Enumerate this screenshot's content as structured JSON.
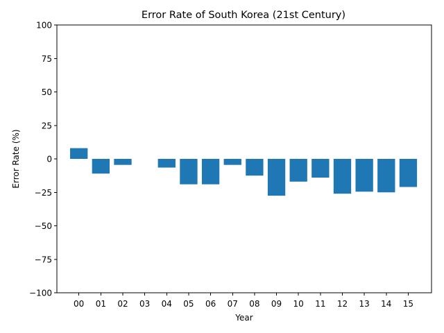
{
  "chart_data": {
    "type": "bar",
    "title": "Error Rate of South Korea (21st Century)",
    "xlabel": "Year",
    "ylabel": "Error Rate (%)",
    "categories": [
      "00",
      "01",
      "02",
      "03",
      "04",
      "05",
      "06",
      "07",
      "08",
      "09",
      "10",
      "11",
      "12",
      "13",
      "14",
      "15"
    ],
    "values": [
      8.0,
      -11.0,
      -4.5,
      0.0,
      -6.5,
      -19.0,
      -19.0,
      -4.5,
      -12.5,
      -27.5,
      -17.0,
      -14.0,
      -26.0,
      -24.5,
      -25.0,
      -21.0
    ],
    "ylim": [
      -100,
      100
    ],
    "yticks": [
      -100,
      -75,
      -50,
      -25,
      0,
      25,
      50,
      75,
      100
    ],
    "ytick_labels": [
      "−100",
      "−75",
      "−50",
      "−25",
      "0",
      "25",
      "50",
      "75",
      "100"
    ],
    "bar_color": "#1f77b4",
    "grid": false,
    "legend": false
  }
}
